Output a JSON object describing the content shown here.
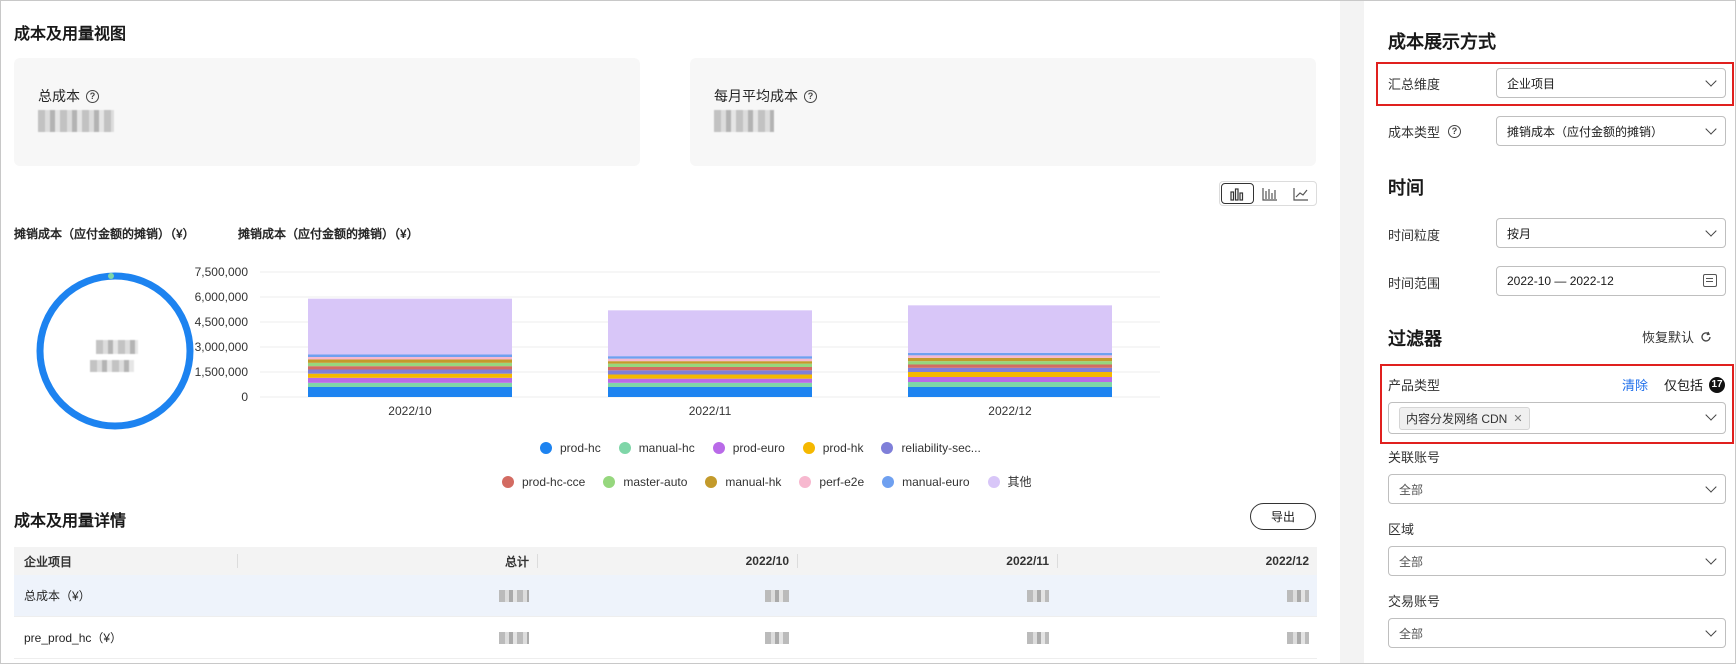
{
  "page": {
    "title": "成本及用量视图",
    "total_cost_label": "总成本",
    "monthly_avg_label": "每月平均成本",
    "help_glyph": "?"
  },
  "chart_toggle": [
    "bar-chart-icon",
    "column-chart-icon",
    "line-chart-icon"
  ],
  "donut": {
    "title": "摊销成本（应付金额的摊销）（¥）",
    "color": "#1d83f0"
  },
  "chart_data": {
    "type": "bar",
    "stacked": true,
    "title": "摊销成本（应付金额的摊销）（¥）",
    "categories": [
      "2022/10",
      "2022/11",
      "2022/12"
    ],
    "y_ticks": [
      "7,500,000",
      "6,000,000",
      "4,500,000",
      "3,000,000",
      "1,500,000",
      "0"
    ],
    "ylim": [
      0,
      7500000
    ],
    "legend_position": "bottom",
    "series": [
      {
        "name": "prod-hc",
        "color": "#1d83f0",
        "values": [
          600000,
          600000,
          600000
        ]
      },
      {
        "name": "manual-hc",
        "color": "#7fd6a8",
        "values": [
          250000,
          250000,
          300000
        ]
      },
      {
        "name": "prod-euro",
        "color": "#b96ae8",
        "values": [
          300000,
          250000,
          300000
        ]
      },
      {
        "name": "prod-hk",
        "color": "#f5b800",
        "values": [
          250000,
          250000,
          300000
        ]
      },
      {
        "name": "reliability-sec...",
        "color": "#7f7fd9",
        "values": [
          250000,
          250000,
          250000
        ]
      },
      {
        "name": "prod-hc-cce",
        "color": "#d36b62",
        "values": [
          200000,
          200000,
          200000
        ]
      },
      {
        "name": "master-auto",
        "color": "#96d77e",
        "values": [
          200000,
          200000,
          200000
        ]
      },
      {
        "name": "manual-hk",
        "color": "#c39a2b",
        "values": [
          200000,
          150000,
          200000
        ]
      },
      {
        "name": "perf-e2e",
        "color": "#f7b8cf",
        "values": [
          150000,
          150000,
          150000
        ]
      },
      {
        "name": "manual-euro",
        "color": "#6fa0f0",
        "values": [
          150000,
          150000,
          150000
        ]
      },
      {
        "name": "其他",
        "color": "#d8c6f8",
        "values": [
          3350000,
          2750000,
          2850000
        ]
      }
    ]
  },
  "details": {
    "title": "成本及用量详情",
    "export_label": "导出",
    "columns": [
      "企业项目",
      "总计",
      "2022/10",
      "2022/11",
      "2022/12"
    ],
    "rows": [
      {
        "label": "总成本（¥）"
      },
      {
        "label": "pre_prod_hc（¥）"
      }
    ]
  },
  "sidebar": {
    "display_title": "成本展示方式",
    "aggregate_label": "汇总维度",
    "aggregate_value": "企业项目",
    "cost_type_label": "成本类型",
    "cost_type_value": "摊销成本（应付金额的摊销）",
    "time_title": "时间",
    "granularity_label": "时间粒度",
    "granularity_value": "按月",
    "range_label": "时间范围",
    "range_value": "2022-10 — 2022-12",
    "filter_title": "过滤器",
    "reset_label": "恢复默认",
    "product_label": "产品类型",
    "clear_label": "清除",
    "include_label": "仅包括",
    "include_badge": "17",
    "product_tag": "内容分发网络 CDN",
    "linked_account_label": "关联账号",
    "linked_account_value": "全部",
    "region_label": "区域",
    "region_value": "全部",
    "trade_account_label": "交易账号",
    "trade_account_value": "全部"
  }
}
